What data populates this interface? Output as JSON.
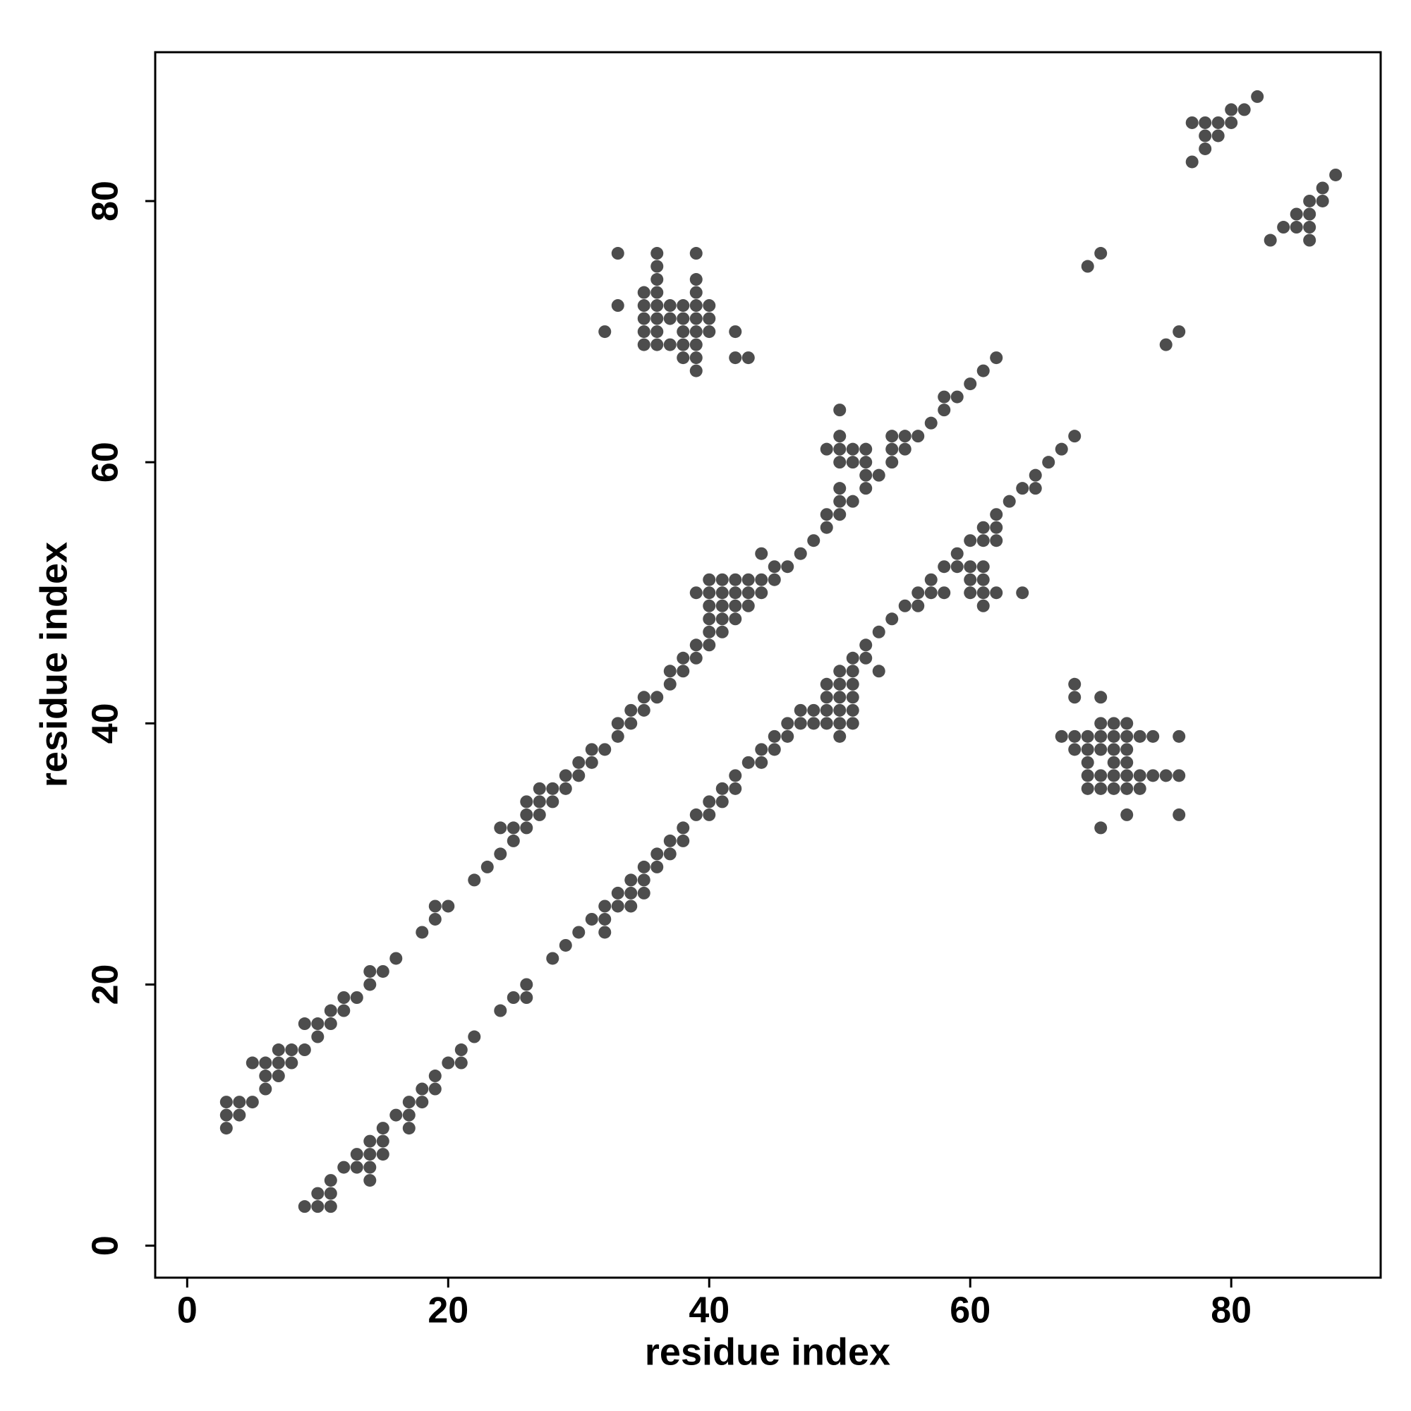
{
  "chart_data": {
    "type": "scatter",
    "xlabel": "residue index",
    "ylabel": "residue index",
    "xlim": [
      -2.45,
      91.45
    ],
    "ylim": [
      -2.45,
      91.4
    ],
    "xticks": [
      0,
      20,
      40,
      60,
      80
    ],
    "yticks": [
      0,
      20,
      40,
      60,
      80
    ],
    "color": "#3a3a3a",
    "x": [
      3,
      3,
      3,
      4,
      4,
      5,
      5,
      6,
      6,
      6,
      7,
      7,
      7,
      8,
      8,
      9,
      9,
      10,
      10,
      11,
      11,
      12,
      12,
      13,
      14,
      14,
      15,
      16,
      18,
      19,
      19,
      20,
      22,
      23,
      24,
      24,
      25,
      25,
      26,
      26,
      26,
      27,
      27,
      27,
      28,
      28,
      29,
      29,
      30,
      30,
      31,
      31,
      32,
      33,
      33,
      34,
      34,
      35,
      35,
      36,
      37,
      37,
      38,
      38,
      39,
      39,
      39,
      40,
      40,
      40,
      40,
      40,
      40,
      41,
      41,
      41,
      41,
      41,
      42,
      42,
      42,
      42,
      43,
      43,
      43,
      44,
      44,
      44,
      45,
      45,
      46,
      47,
      48,
      49,
      49,
      49,
      50,
      50,
      50,
      50,
      50,
      50,
      50,
      51,
      51,
      51,
      52,
      52,
      52,
      52,
      53,
      54,
      54,
      54,
      55,
      55,
      56,
      57,
      58,
      58,
      59,
      60,
      61,
      62,
      9,
      10,
      10,
      11,
      11,
      11,
      12,
      13,
      13,
      14,
      14,
      14,
      14,
      15,
      15,
      15,
      16,
      17,
      17,
      17,
      18,
      18,
      19,
      19,
      20,
      21,
      21,
      22,
      24,
      25,
      26,
      26,
      28,
      29,
      30,
      31,
      32,
      32,
      32,
      33,
      33,
      34,
      34,
      34,
      35,
      35,
      35,
      36,
      36,
      37,
      37,
      38,
      38,
      39,
      40,
      40,
      41,
      41,
      42,
      42,
      43,
      44,
      44,
      45,
      45,
      46,
      46,
      47,
      47,
      48,
      48,
      49,
      49,
      49,
      49,
      50,
      50,
      50,
      50,
      50,
      50,
      51,
      51,
      51,
      51,
      51,
      51,
      52,
      52,
      53,
      53,
      54,
      55,
      56,
      56,
      57,
      57,
      58,
      58,
      59,
      59,
      60,
      60,
      60,
      60,
      61,
      61,
      61,
      61,
      61,
      61,
      62,
      62,
      62,
      62,
      63,
      64,
      64,
      65,
      65,
      66,
      67,
      68,
      32,
      33,
      33,
      35,
      35,
      35,
      35,
      35,
      36,
      36,
      36,
      36,
      36,
      36,
      36,
      36,
      37,
      37,
      37,
      38,
      38,
      38,
      38,
      38,
      39,
      39,
      39,
      39,
      39,
      39,
      39,
      39,
      39,
      40,
      40,
      40,
      42,
      42,
      43,
      67,
      68,
      68,
      68,
      68,
      69,
      69,
      69,
      69,
      69,
      70,
      70,
      70,
      70,
      70,
      70,
      70,
      71,
      71,
      71,
      71,
      71,
      71,
      72,
      72,
      72,
      72,
      72,
      72,
      72,
      73,
      73,
      73,
      74,
      74,
      75,
      76,
      76,
      76,
      69,
      70,
      75,
      76,
      77,
      77,
      78,
      78,
      78,
      79,
      79,
      80,
      80,
      81,
      82,
      83,
      84,
      85,
      85,
      86,
      86,
      86,
      86,
      87,
      87,
      88
    ],
    "values": [
      11,
      10,
      9,
      11,
      10,
      11,
      14,
      14,
      13,
      12,
      15,
      14,
      13,
      15,
      14,
      17,
      15,
      17,
      16,
      18,
      17,
      19,
      18,
      19,
      21,
      20,
      21,
      22,
      24,
      26,
      25,
      26,
      28,
      29,
      32,
      30,
      32,
      31,
      34,
      33,
      32,
      35,
      34,
      33,
      35,
      34,
      36,
      35,
      37,
      36,
      38,
      37,
      38,
      40,
      39,
      41,
      40,
      42,
      41,
      42,
      44,
      43,
      45,
      44,
      46,
      45,
      50,
      51,
      50,
      49,
      48,
      47,
      46,
      51,
      50,
      49,
      48,
      47,
      51,
      50,
      49,
      48,
      51,
      50,
      49,
      53,
      51,
      50,
      52,
      51,
      52,
      53,
      54,
      61,
      56,
      55,
      64,
      62,
      61,
      60,
      58,
      57,
      56,
      61,
      60,
      57,
      61,
      60,
      59,
      58,
      59,
      62,
      61,
      60,
      62,
      61,
      62,
      63,
      65,
      64,
      65,
      66,
      67,
      68,
      3,
      4,
      3,
      5,
      4,
      3,
      6,
      7,
      6,
      8,
      7,
      6,
      5,
      9,
      8,
      7,
      10,
      11,
      10,
      9,
      12,
      11,
      13,
      12,
      14,
      15,
      14,
      16,
      18,
      19,
      20,
      19,
      22,
      23,
      24,
      25,
      26,
      25,
      24,
      27,
      26,
      28,
      27,
      26,
      29,
      28,
      27,
      30,
      29,
      31,
      30,
      32,
      31,
      33,
      34,
      33,
      35,
      34,
      36,
      35,
      37,
      38,
      37,
      39,
      38,
      40,
      39,
      41,
      40,
      41,
      40,
      43,
      42,
      41,
      40,
      44,
      43,
      42,
      41,
      40,
      39,
      45,
      44,
      43,
      42,
      41,
      40,
      46,
      45,
      47,
      44,
      48,
      49,
      50,
      49,
      51,
      50,
      52,
      50,
      53,
      52,
      54,
      52,
      51,
      50,
      55,
      54,
      52,
      51,
      50,
      49,
      56,
      55,
      54,
      50,
      57,
      58,
      50,
      59,
      58,
      60,
      61,
      62,
      70,
      76,
      72,
      73,
      72,
      71,
      70,
      69,
      76,
      75,
      74,
      73,
      72,
      71,
      70,
      69,
      72,
      71,
      69,
      72,
      71,
      70,
      69,
      68,
      76,
      74,
      73,
      72,
      71,
      70,
      69,
      68,
      67,
      72,
      71,
      70,
      70,
      68,
      68,
      39,
      43,
      42,
      39,
      38,
      39,
      38,
      37,
      36,
      35,
      42,
      40,
      39,
      38,
      36,
      35,
      32,
      40,
      39,
      38,
      37,
      36,
      35,
      40,
      39,
      38,
      37,
      36,
      35,
      33,
      39,
      36,
      35,
      39,
      36,
      36,
      39,
      36,
      33,
      75,
      76,
      69,
      70,
      83,
      86,
      86,
      85,
      84,
      86,
      85,
      87,
      86,
      87,
      88,
      77,
      78,
      79,
      78,
      80,
      79,
      78,
      77,
      81,
      80,
      82
    ]
  }
}
